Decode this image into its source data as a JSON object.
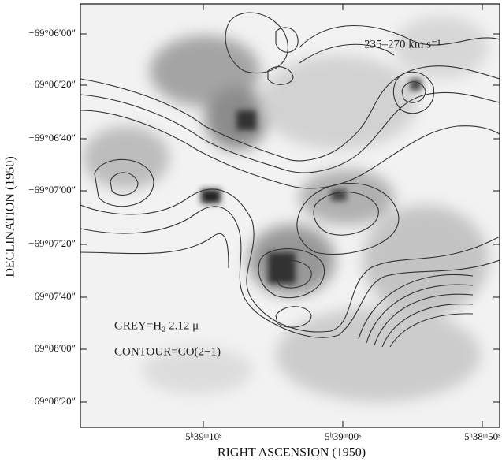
{
  "figure": {
    "y_axis": {
      "label": "DECLINATION (1950)",
      "ticks": [
        "−69°06′00″",
        "−69°06′20″",
        "−69°06′40″",
        "−69°07′00″",
        "−69°07′20″",
        "−69°07′40″",
        "−69°08′00″",
        "−69°08′20″"
      ]
    },
    "x_axis": {
      "label": "RIGHT ASCENSION (1950)",
      "ticks": [
        "5ʰ39ᵐ10ˢ",
        "5ʰ39ᵐ00ˢ",
        "5ʰ38ᵐ50ˢ"
      ]
    },
    "annotations": {
      "velocity": "235–270 km s⁻¹",
      "grey": "GREY=H₂ 2.12 μ",
      "contour": "CONTOUR=CO(2−1)"
    }
  }
}
